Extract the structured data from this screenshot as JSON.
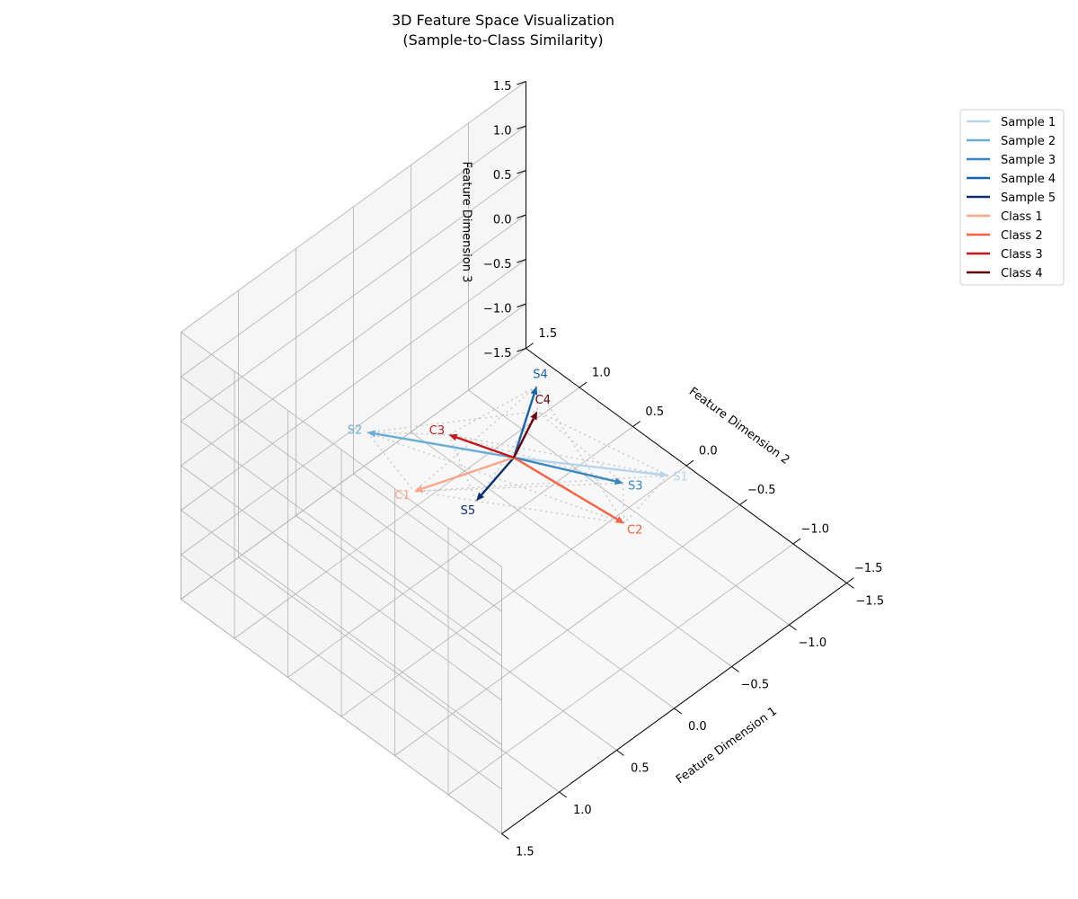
{
  "chart_data": {
    "type": "3d-vector",
    "title": "3D Feature Space Visualization",
    "subtitle": "(Sample-to-Class Similarity)",
    "xlabel": "Feature Dimension 1",
    "ylabel": "Feature Dimension 2",
    "zlabel": "Feature Dimension 3",
    "xlim": [
      -1.5,
      1.5
    ],
    "ylim": [
      -1.5,
      1.5
    ],
    "zlim": [
      -1.5,
      1.5
    ],
    "x_ticks": [
      "−1.5",
      "−1.0",
      "−0.5",
      "0.0",
      "0.5",
      "1.0",
      "1.5"
    ],
    "y_ticks": [
      "−1.5",
      "−1.0",
      "−0.5",
      "0.0",
      "0.5",
      "1.0",
      "1.5"
    ],
    "z_ticks": [
      "−1.5",
      "−1.0",
      "−0.5",
      "0.0",
      "0.5",
      "1.0",
      "1.5"
    ],
    "x_tick_values": [
      -1.5,
      -1.0,
      -0.5,
      0.0,
      0.5,
      1.0,
      1.5
    ],
    "y_tick_values": [
      -1.5,
      -1.0,
      -0.5,
      0.0,
      0.5,
      1.0,
      1.5
    ],
    "z_tick_values": [
      -1.5,
      -1.0,
      -0.5,
      0.0,
      0.5,
      1.0,
      1.5
    ],
    "grid": true,
    "legend_position": "upper right, outside",
    "origin": [
      0,
      0,
      0
    ],
    "samples": [
      {
        "name": "Sample 1",
        "label": "S1",
        "color": "#b7d4ea",
        "vector": [
          -0.55,
          -0.85,
          0.03
        ]
      },
      {
        "name": "Sample 2",
        "label": "S2",
        "color": "#6aaed6",
        "vector": [
          0.42,
          0.92,
          -0.13
        ]
      },
      {
        "name": "Sample 3",
        "label": "S3",
        "color": "#3787c0",
        "vector": [
          -0.42,
          -0.57,
          -0.18
        ]
      },
      {
        "name": "Sample 4",
        "label": "S4",
        "color": "#1764ab",
        "vector": [
          -0.03,
          -0.18,
          0.93
        ]
      },
      {
        "name": "Sample 5",
        "label": "S5",
        "color": "#08306b",
        "vector": [
          0.03,
          0.32,
          -0.74
        ]
      }
    ],
    "classes": [
      {
        "name": "Class 1",
        "label": "C1",
        "color": "#fca689",
        "vector": [
          0.28,
          0.63,
          -0.67
        ]
      },
      {
        "name": "Class 2",
        "label": "C2",
        "color": "#f96044",
        "vector": [
          -0.55,
          -0.44,
          -0.87
        ]
      },
      {
        "name": "Class 3",
        "label": "C3",
        "color": "#c5171c",
        "vector": [
          0.37,
          0.21,
          0.42
        ]
      },
      {
        "name": "Class 4",
        "label": "C4",
        "color": "#67000d",
        "vector": [
          0.02,
          -0.24,
          0.75
        ]
      }
    ],
    "similarity_lines": "dotted gray lines connect every sample tip to every class tip"
  }
}
